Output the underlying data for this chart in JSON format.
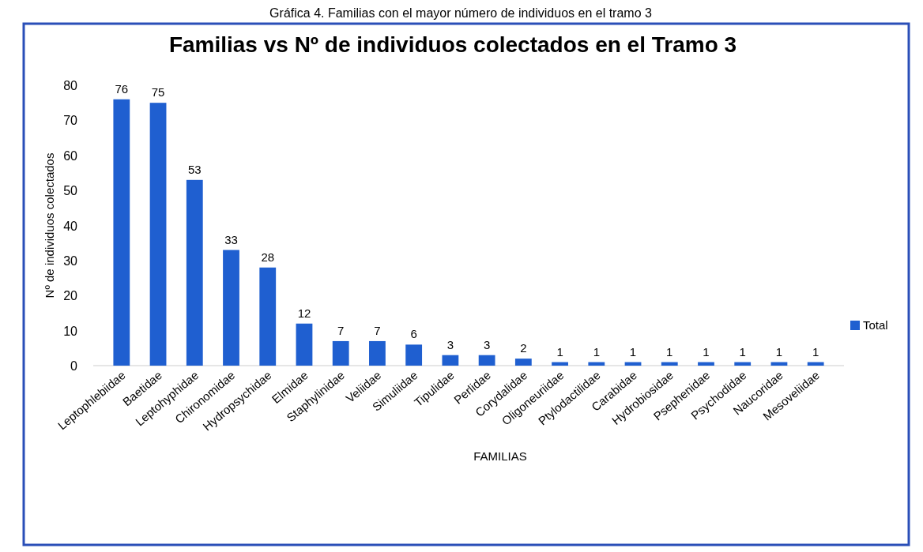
{
  "chart_data": {
    "type": "bar",
    "title": "Familias vs Nº de individuos colectados en el Tramo 3",
    "xlabel": "FAMILIAS",
    "ylabel": "Nº de individuos colectados",
    "annotations": [
      "Gráfica 4. Familias con el mayor número de individuos en el tramo 3"
    ],
    "categories": [
      "Leptophlebiidae",
      "Baetidae",
      "Leptohyphidae",
      "Chironomidae",
      "Hydropsychidae",
      "Elmidae",
      "Staphylinidae",
      "Veliidae",
      "Simuliidae",
      "Tipulidae",
      "Perlidae",
      "Corydalidae",
      "Oligoneuriidae",
      "Ptylodactilidae",
      "Carabidae",
      "Hydrobiosidae",
      "Psephenidae",
      "Psychodidae",
      "Naucoridae",
      "Mesoveliidae"
    ],
    "series": [
      {
        "name": "Total",
        "color": "#1f5fd0",
        "values": [
          76,
          75,
          53,
          33,
          28,
          12,
          7,
          7,
          6,
          3,
          3,
          2,
          1,
          1,
          1,
          1,
          1,
          1,
          1,
          1
        ]
      }
    ],
    "ylim": [
      0,
      80
    ],
    "yticks": [
      0,
      10,
      20,
      30,
      40,
      50,
      60,
      70,
      80
    ],
    "data_labels": true,
    "legend": "right",
    "grid": false
  }
}
